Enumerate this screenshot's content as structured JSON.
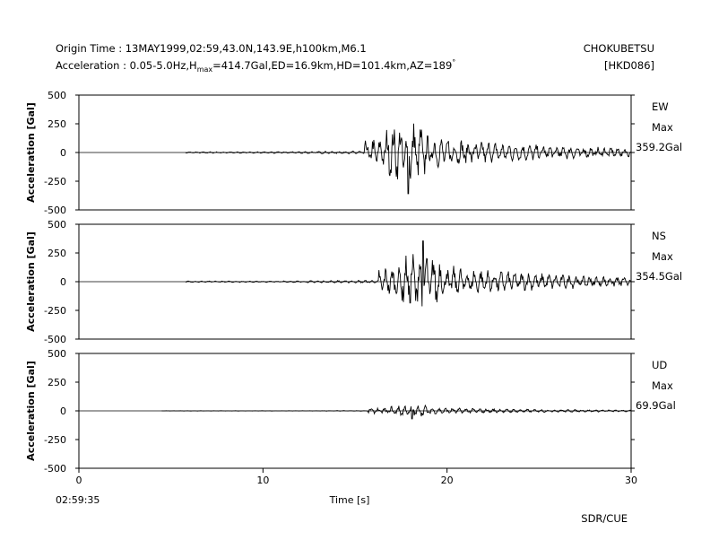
{
  "header": {
    "origin_line": "Origin Time : 13MAY1999,02:59,43.0N,143.9E,h100km,M6.1",
    "accel_prefix": "Acceleration : 0.05-5.0Hz,H",
    "accel_sub": "max",
    "accel_suffix": "=414.7Gal,ED=16.9km,HD=101.4km,AZ=189",
    "accel_deg": "°",
    "station": "CHOKUBETSU",
    "station_code": "[HKD086]"
  },
  "footer": {
    "start_time": "02:59:35",
    "credit": "SDR/CUE"
  },
  "chart_data": {
    "type": "line",
    "xlabel": "Time [s]",
    "xlim": [
      0,
      30
    ],
    "x_ticks": [
      0,
      10,
      20,
      30
    ],
    "ylim": [
      -500,
      500
    ],
    "y_ticks": [
      500,
      250,
      0,
      -250,
      -500
    ],
    "ylabel": "Acceleration [Gal]",
    "grid": false,
    "panels": [
      {
        "component": "EW",
        "max_label": "Max",
        "max_value": "359.2Gal",
        "record_start_s": 5.8,
        "peak": -359.2,
        "peak_time_s": 17.9
      },
      {
        "component": "NS",
        "max_label": "Max",
        "max_value": "354.5Gal",
        "record_start_s": 5.8,
        "peak": 354.5,
        "peak_time_s": 18.7
      },
      {
        "component": "UD",
        "max_label": "Max",
        "max_value": "69.9Gal",
        "record_start_s": 4.5,
        "peak": -69.9,
        "peak_time_s": 18.1
      }
    ]
  }
}
